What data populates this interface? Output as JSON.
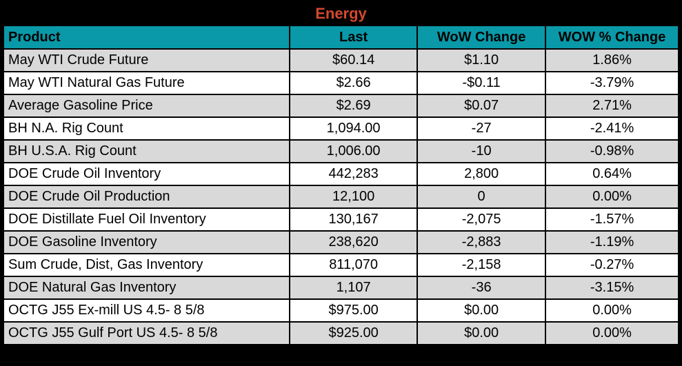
{
  "title": "Energy",
  "colors": {
    "title_text": "#D2492E",
    "header_bg": "#0999A8",
    "header_text": "#000000",
    "row_alt_bg": "#D9D9D9",
    "row_bg": "#FFFFFF",
    "grid_border": "#000000",
    "frame_bg": "#000000"
  },
  "chart_data": {
    "type": "table",
    "title": "Energy",
    "columns": [
      "Product",
      "Last",
      "WoW Change",
      "WOW % Change"
    ],
    "rows": [
      [
        "May WTI Crude Future",
        "$60.14",
        "$1.10",
        "1.86%"
      ],
      [
        "May WTI Natural Gas Future",
        "$2.66",
        "-$0.11",
        "-3.79%"
      ],
      [
        "Average Gasoline Price",
        "$2.69",
        "$0.07",
        "2.71%"
      ],
      [
        "BH N.A. Rig Count",
        "1,094.00",
        "-27",
        "-2.41%"
      ],
      [
        "BH U.S.A. Rig Count",
        "1,006.00",
        "-10",
        "-0.98%"
      ],
      [
        "DOE Crude Oil Inventory",
        "442,283",
        "2,800",
        "0.64%"
      ],
      [
        "DOE Crude Oil Production",
        "12,100",
        "0",
        "0.00%"
      ],
      [
        "DOE Distillate Fuel Oil Inventory",
        "130,167",
        "-2,075",
        "-1.57%"
      ],
      [
        "DOE Gasoline Inventory",
        "238,620",
        "-2,883",
        "-1.19%"
      ],
      [
        "Sum Crude, Dist, Gas Inventory",
        "811,070",
        "-2,158",
        "-0.27%"
      ],
      [
        "DOE Natural Gas Inventory",
        "1,107",
        "-36",
        "-3.15%"
      ],
      [
        "OCTG J55 Ex-mill US 4.5- 8 5/8",
        "$975.00",
        "$0.00",
        "0.00%"
      ],
      [
        "OCTG J55 Gulf Port US 4.5- 8 5/8",
        "$925.00",
        "$0.00",
        "0.00%"
      ]
    ],
    "layout": {
      "alternating_rows": true,
      "first_column_align": "left",
      "value_columns_align": "center"
    }
  }
}
